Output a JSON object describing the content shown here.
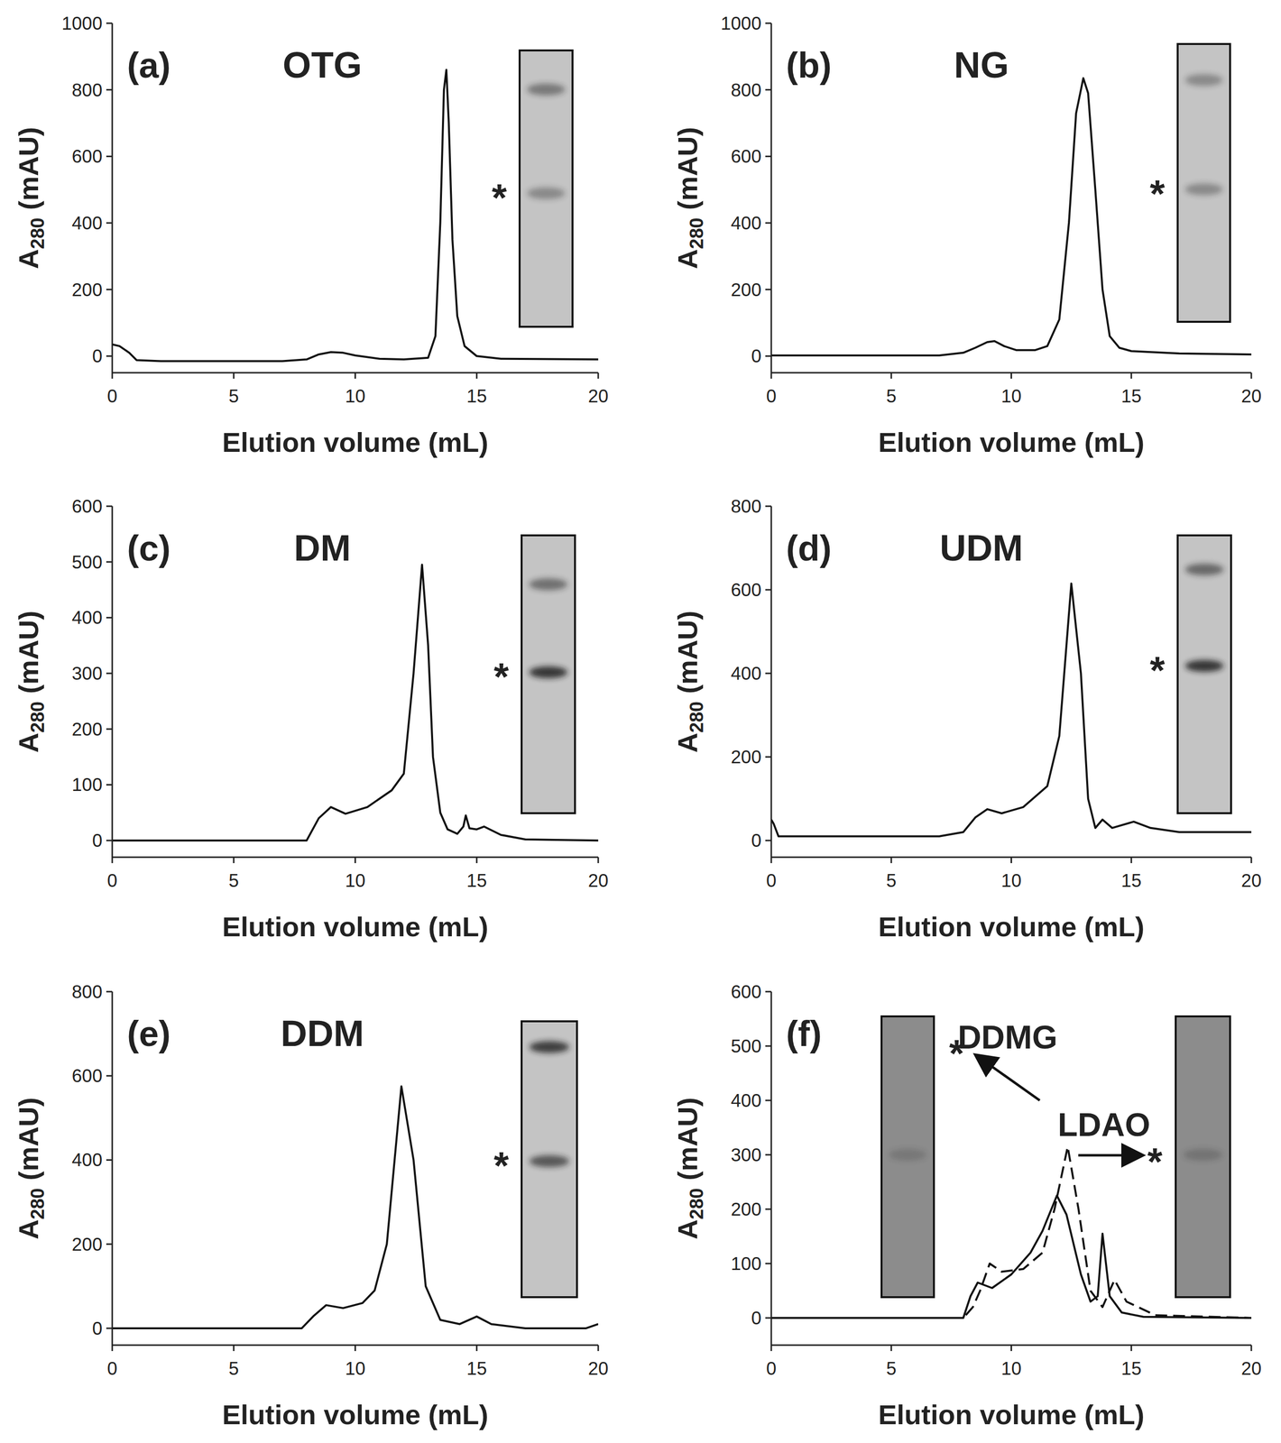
{
  "chart_data": [
    {
      "type": "line",
      "panel_label": "(a)",
      "title": "OTG",
      "x_label": "Elution volume (mL)",
      "y_label": "A280 (mAU)",
      "xlim": [
        0,
        20
      ],
      "xticks": [
        0,
        5,
        10,
        15,
        20
      ],
      "ylim": [
        -50,
        1000
      ],
      "yticks": [
        0,
        200,
        400,
        600,
        800,
        1000
      ],
      "annotations": [
        "*"
      ],
      "series": [
        {
          "color": "#111111",
          "line_style": "solid",
          "x": [
            0,
            0.3,
            0.7,
            1,
            2,
            7,
            8,
            8.5,
            9,
            9.5,
            10,
            11,
            12,
            13,
            13.3,
            13.5,
            13.65,
            13.75,
            13.85,
            14,
            14.2,
            14.5,
            15,
            16,
            20
          ],
          "values": [
            35,
            30,
            10,
            -12,
            -15,
            -15,
            -10,
            5,
            12,
            10,
            2,
            -8,
            -10,
            -5,
            60,
            400,
            800,
            860,
            700,
            350,
            120,
            30,
            0,
            -8,
            -10
          ]
        }
      ]
    },
    {
      "type": "line",
      "panel_label": "(b)",
      "title": "NG",
      "x_label": "Elution volume (mL)",
      "y_label": "A280 (mAU)",
      "xlim": [
        0,
        20
      ],
      "xticks": [
        0,
        5,
        10,
        15,
        20
      ],
      "ylim": [
        -50,
        1000
      ],
      "yticks": [
        0,
        200,
        400,
        600,
        800,
        1000
      ],
      "annotations": [
        "*"
      ],
      "series": [
        {
          "color": "#111111",
          "line_style": "solid",
          "x": [
            0,
            7,
            8,
            8.5,
            9,
            9.3,
            9.7,
            10.2,
            11,
            11.5,
            12,
            12.4,
            12.7,
            13,
            13.2,
            13.5,
            13.8,
            14.1,
            14.5,
            15,
            17,
            20
          ],
          "values": [
            2,
            2,
            10,
            25,
            42,
            45,
            30,
            18,
            18,
            30,
            110,
            400,
            730,
            835,
            790,
            500,
            200,
            60,
            25,
            15,
            8,
            5
          ]
        }
      ]
    },
    {
      "type": "line",
      "panel_label": "(c)",
      "title": "DM",
      "x_label": "Elution volume (mL)",
      "y_label": "A280 (mAU)",
      "xlim": [
        0,
        20
      ],
      "xticks": [
        0,
        5,
        10,
        15,
        20
      ],
      "ylim": [
        -30,
        600
      ],
      "yticks": [
        0,
        100,
        200,
        300,
        400,
        500,
        600
      ],
      "annotations": [
        "*"
      ],
      "series": [
        {
          "color": "#111111",
          "line_style": "solid",
          "x": [
            0,
            8,
            8.5,
            9,
            9.6,
            10.5,
            11.5,
            12,
            12.4,
            12.75,
            13,
            13.2,
            13.5,
            13.8,
            14.2,
            14.45,
            14.55,
            14.7,
            15,
            15.3,
            16,
            17,
            20
          ],
          "values": [
            0,
            0,
            40,
            60,
            48,
            60,
            90,
            120,
            300,
            495,
            350,
            150,
            50,
            20,
            12,
            25,
            45,
            22,
            20,
            25,
            10,
            2,
            0
          ]
        }
      ]
    },
    {
      "type": "line",
      "panel_label": "(d)",
      "title": "UDM",
      "x_label": "Elution volume (mL)",
      "y_label": "A280 (mAU)",
      "xlim": [
        0,
        20
      ],
      "xticks": [
        0,
        5,
        10,
        15,
        20
      ],
      "ylim": [
        -40,
        800
      ],
      "yticks": [
        0,
        200,
        400,
        600,
        800
      ],
      "annotations": [
        "*"
      ],
      "series": [
        {
          "color": "#111111",
          "line_style": "solid",
          "x": [
            0,
            0.1,
            0.3,
            1,
            7,
            8,
            8.5,
            9,
            9.6,
            10.5,
            11.5,
            12,
            12.5,
            12.9,
            13.2,
            13.5,
            13.8,
            14.2,
            15.1,
            15.8,
            17,
            20
          ],
          "values": [
            50,
            40,
            10,
            10,
            10,
            20,
            55,
            75,
            65,
            80,
            130,
            250,
            615,
            400,
            100,
            30,
            50,
            30,
            45,
            30,
            20,
            20
          ]
        }
      ]
    },
    {
      "type": "line",
      "panel_label": "(e)",
      "title": "DDM",
      "x_label": "Elution volume (mL)",
      "y_label": "A280 (mAU)",
      "xlim": [
        0,
        20
      ],
      "xticks": [
        0,
        5,
        10,
        15,
        20
      ],
      "ylim": [
        -40,
        800
      ],
      "yticks": [
        0,
        200,
        400,
        600,
        800
      ],
      "annotations": [
        "*"
      ],
      "series": [
        {
          "color": "#111111",
          "line_style": "solid",
          "x": [
            0,
            7.8,
            8.3,
            8.8,
            9.5,
            10.3,
            10.8,
            11.3,
            11.9,
            12.4,
            12.9,
            13.5,
            14.3,
            15,
            15.6,
            17,
            19.5,
            20
          ],
          "values": [
            0,
            0,
            30,
            55,
            48,
            60,
            90,
            200,
            575,
            400,
            100,
            20,
            10,
            28,
            10,
            0,
            0,
            10
          ]
        }
      ]
    },
    {
      "type": "line",
      "panel_label": "(f)",
      "x_label": "Elution volume (mL)",
      "y_label": "A280 (mAU)",
      "xlim": [
        0,
        20
      ],
      "xticks": [
        0,
        5,
        10,
        15,
        20
      ],
      "ylim": [
        -50,
        600
      ],
      "yticks": [
        0,
        100,
        200,
        300,
        400,
        500,
        600
      ],
      "annotations": [
        "*",
        "*"
      ],
      "series": [
        {
          "name": "DDMG",
          "color": "#111111",
          "line_style": "solid",
          "x": [
            0,
            8,
            8.3,
            8.6,
            9.2,
            10,
            10.8,
            11.3,
            11.9,
            12.3,
            12.9,
            13.3,
            13.6,
            13.8,
            14.1,
            14.6,
            15.5,
            20
          ],
          "values": [
            0,
            0,
            40,
            65,
            55,
            80,
            120,
            160,
            225,
            190,
            80,
            30,
            40,
            155,
            40,
            10,
            2,
            0
          ]
        },
        {
          "name": "LDAO",
          "color": "#111111",
          "line_style": "dashed",
          "x": [
            0,
            8,
            8.4,
            8.7,
            9.1,
            9.6,
            10.5,
            11.3,
            11.8,
            12.35,
            12.8,
            13.3,
            13.8,
            14.3,
            14.8,
            16,
            20
          ],
          "values": [
            0,
            0,
            20,
            50,
            100,
            85,
            90,
            120,
            200,
            315,
            200,
            50,
            20,
            70,
            30,
            5,
            0
          ]
        }
      ]
    }
  ]
}
